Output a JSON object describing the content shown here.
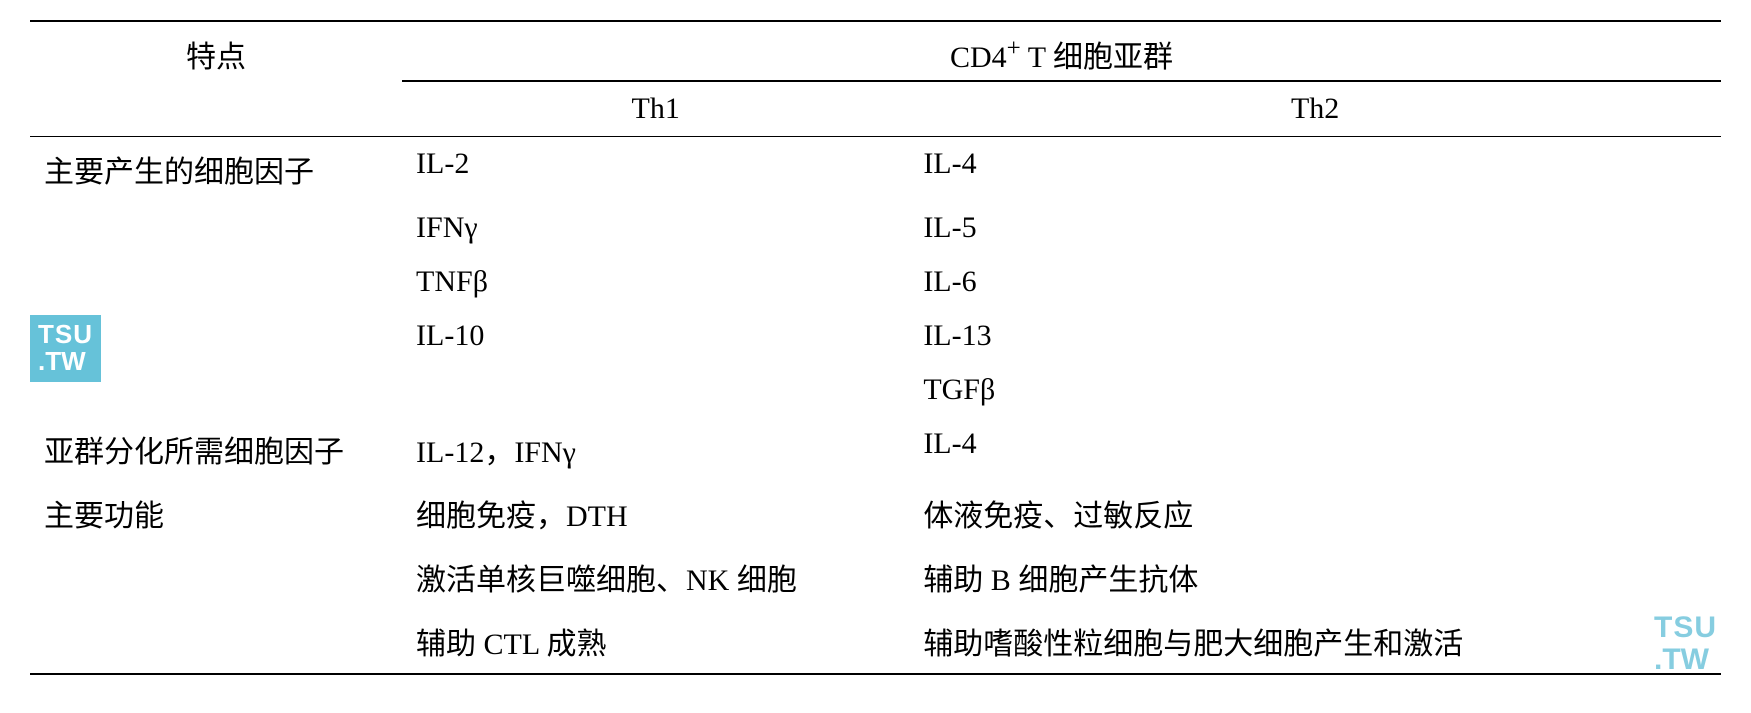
{
  "table": {
    "header": {
      "characteristics": "特点",
      "group_title": "CD4",
      "group_sup": "+",
      "group_tail": " T 细胞亚群",
      "th1": "Th1",
      "th2": "Th2"
    },
    "rows": [
      {
        "label": "主要产生的细胞因子",
        "th1": "IL-2",
        "th2": "IL-4"
      },
      {
        "label": "",
        "th1": "IFNγ",
        "th2": "IL-5"
      },
      {
        "label": "",
        "th1": "TNFβ",
        "th2": "IL-6"
      },
      {
        "label": "",
        "th1": "IL-10",
        "th2": "IL-13"
      },
      {
        "label": "",
        "th1": "",
        "th2": "TGFβ"
      },
      {
        "label": "亚群分化所需细胞因子",
        "th1": "IL-12，IFNγ",
        "th2": "IL-4"
      },
      {
        "label": "主要功能",
        "th1": "细胞免疫，DTH",
        "th2": "体液免疫、过敏反应"
      },
      {
        "label": "",
        "th1": "激活单核巨噬细胞、NK 细胞",
        "th2": "辅助 B 细胞产生抗体"
      },
      {
        "label": "",
        "th1": "辅助 CTL 成熟",
        "th2": "辅助嗜酸性粒细胞与肥大细胞产生和激活"
      }
    ],
    "colors": {
      "text": "#000000",
      "background": "#ffffff",
      "watermark_bg": "#66c2d9",
      "watermark_fg_light": "#86cde0",
      "watermark_fg_white": "#ffffff"
    },
    "font_size": 30,
    "column_widths_pct": [
      22,
      30,
      48
    ]
  },
  "watermark": {
    "line1": "TSU",
    "line2": ".TW"
  }
}
